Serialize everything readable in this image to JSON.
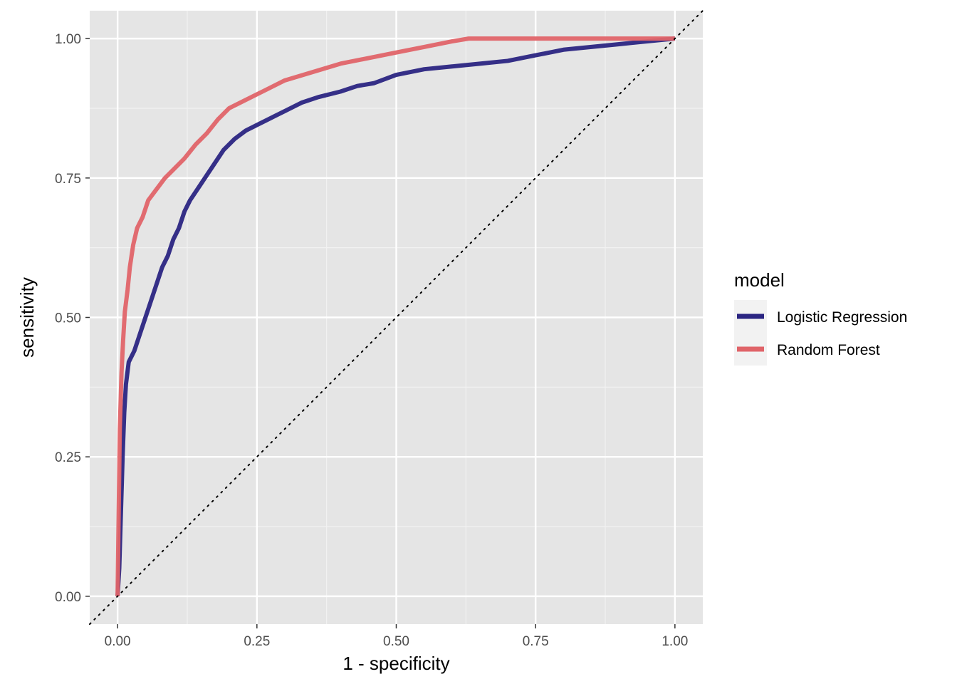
{
  "chart_data": {
    "type": "line",
    "title": "",
    "xlabel": "1 - specificity",
    "ylabel": "sensitivity",
    "xlim": [
      -0.05,
      1.05
    ],
    "ylim": [
      -0.05,
      1.05
    ],
    "x_ticks": [
      "0.00",
      "0.25",
      "0.50",
      "0.75",
      "1.00"
    ],
    "y_ticks": [
      "0.00",
      "0.25",
      "0.50",
      "0.75",
      "1.00"
    ],
    "grid": true,
    "background": "#e5e5e5",
    "legend": {
      "title": "model",
      "position": "right"
    },
    "reference_line": {
      "style": "dotted",
      "from": [
        0,
        0
      ],
      "to": [
        1,
        1
      ],
      "color": "#000000"
    },
    "series": [
      {
        "name": "Logistic Regression",
        "color": "#2b2582",
        "points": [
          [
            0,
            0
          ],
          [
            0.003,
            0.05
          ],
          [
            0.006,
            0.15
          ],
          [
            0.009,
            0.25
          ],
          [
            0.012,
            0.33
          ],
          [
            0.015,
            0.38
          ],
          [
            0.02,
            0.42
          ],
          [
            0.03,
            0.44
          ],
          [
            0.04,
            0.47
          ],
          [
            0.05,
            0.5
          ],
          [
            0.06,
            0.53
          ],
          [
            0.07,
            0.56
          ],
          [
            0.08,
            0.59
          ],
          [
            0.09,
            0.61
          ],
          [
            0.1,
            0.64
          ],
          [
            0.11,
            0.66
          ],
          [
            0.12,
            0.69
          ],
          [
            0.13,
            0.71
          ],
          [
            0.15,
            0.74
          ],
          [
            0.17,
            0.77
          ],
          [
            0.19,
            0.8
          ],
          [
            0.21,
            0.82
          ],
          [
            0.23,
            0.835
          ],
          [
            0.25,
            0.845
          ],
          [
            0.28,
            0.86
          ],
          [
            0.3,
            0.87
          ],
          [
            0.33,
            0.885
          ],
          [
            0.36,
            0.895
          ],
          [
            0.4,
            0.905
          ],
          [
            0.43,
            0.915
          ],
          [
            0.46,
            0.92
          ],
          [
            0.5,
            0.935
          ],
          [
            0.55,
            0.945
          ],
          [
            0.6,
            0.95
          ],
          [
            0.65,
            0.955
          ],
          [
            0.7,
            0.96
          ],
          [
            0.75,
            0.97
          ],
          [
            0.8,
            0.98
          ],
          [
            0.85,
            0.985
          ],
          [
            0.9,
            0.99
          ],
          [
            0.95,
            0.995
          ],
          [
            1.0,
            1.0
          ]
        ]
      },
      {
        "name": "Random Forest",
        "color": "#e06469",
        "points": [
          [
            0,
            0
          ],
          [
            0.002,
            0.15
          ],
          [
            0.004,
            0.3
          ],
          [
            0.007,
            0.4
          ],
          [
            0.01,
            0.46
          ],
          [
            0.013,
            0.51
          ],
          [
            0.018,
            0.55
          ],
          [
            0.022,
            0.59
          ],
          [
            0.028,
            0.63
          ],
          [
            0.035,
            0.66
          ],
          [
            0.045,
            0.68
          ],
          [
            0.055,
            0.71
          ],
          [
            0.07,
            0.73
          ],
          [
            0.085,
            0.75
          ],
          [
            0.1,
            0.765
          ],
          [
            0.12,
            0.785
          ],
          [
            0.14,
            0.81
          ],
          [
            0.16,
            0.83
          ],
          [
            0.18,
            0.855
          ],
          [
            0.2,
            0.875
          ],
          [
            0.23,
            0.89
          ],
          [
            0.26,
            0.905
          ],
          [
            0.3,
            0.925
          ],
          [
            0.35,
            0.94
          ],
          [
            0.4,
            0.955
          ],
          [
            0.45,
            0.965
          ],
          [
            0.5,
            0.975
          ],
          [
            0.55,
            0.985
          ],
          [
            0.6,
            0.995
          ],
          [
            0.63,
            1.0
          ],
          [
            0.75,
            1.0
          ],
          [
            0.85,
            1.0
          ],
          [
            1.0,
            1.0
          ]
        ]
      }
    ]
  }
}
